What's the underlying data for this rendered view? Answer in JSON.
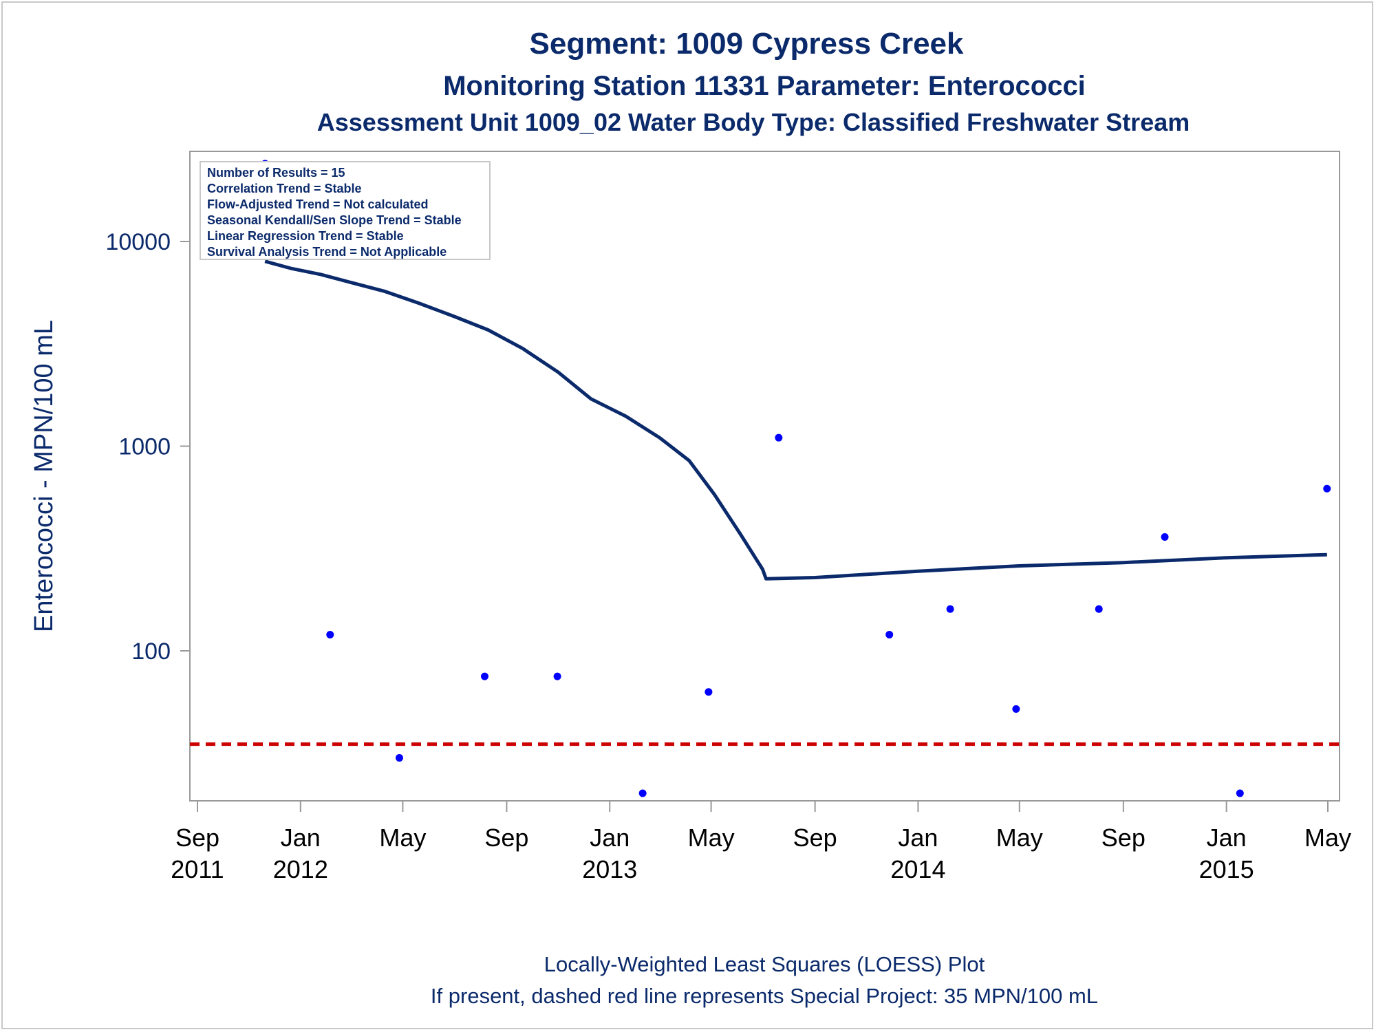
{
  "chart_data": {
    "type": "scatter",
    "title": "Segment: 1009  Cypress Creek",
    "subtitle": "Monitoring Station 11331 Parameter: Enterococci",
    "subtitle2": "Assessment Unit 1009_02   Water Body Type: Classified Freshwater Stream",
    "ylabel": "Enterococci - MPN/100 mL",
    "xlabel": "",
    "y_scale": "log",
    "ylim": [
      17,
      25000
    ],
    "xlim": [
      "2011-09-01",
      "2015-05-01"
    ],
    "yticks": [
      {
        "value": 10000,
        "label": "10000"
      },
      {
        "value": 1000,
        "label": "1000"
      },
      {
        "value": 100,
        "label": "100"
      }
    ],
    "xticks": [
      {
        "date": "2011-09-01",
        "month": "Sep",
        "year": "2011"
      },
      {
        "date": "2012-01-01",
        "month": "Jan",
        "year": "2012"
      },
      {
        "date": "2012-05-01",
        "month": "May",
        "year": ""
      },
      {
        "date": "2012-09-01",
        "month": "Sep",
        "year": ""
      },
      {
        "date": "2013-01-01",
        "month": "Jan",
        "year": "2013"
      },
      {
        "date": "2013-05-01",
        "month": "May",
        "year": ""
      },
      {
        "date": "2013-09-01",
        "month": "Sep",
        "year": ""
      },
      {
        "date": "2014-01-01",
        "month": "Jan",
        "year": "2014"
      },
      {
        "date": "2014-05-01",
        "month": "May",
        "year": ""
      },
      {
        "date": "2014-09-01",
        "month": "Sep",
        "year": ""
      },
      {
        "date": "2015-01-01",
        "month": "Jan",
        "year": "2015"
      },
      {
        "date": "2015-05-01",
        "month": "May",
        "year": ""
      }
    ],
    "points": [
      {
        "date": "2011-11-20",
        "value": 24000
      },
      {
        "date": "2012-02-05",
        "value": 120
      },
      {
        "date": "2012-04-27",
        "value": 30
      },
      {
        "date": "2012-08-06",
        "value": 75
      },
      {
        "date": "2012-10-31",
        "value": 75
      },
      {
        "date": "2013-02-09",
        "value": 20
      },
      {
        "date": "2013-04-28",
        "value": 63
      },
      {
        "date": "2013-07-20",
        "value": 1100
      },
      {
        "date": "2013-11-28",
        "value": 120
      },
      {
        "date": "2014-02-08",
        "value": 160
      },
      {
        "date": "2014-04-27",
        "value": 52
      },
      {
        "date": "2014-08-03",
        "value": 160
      },
      {
        "date": "2014-10-20",
        "value": 360
      },
      {
        "date": "2015-01-17",
        "value": 20
      },
      {
        "date": "2015-04-30",
        "value": 620
      }
    ],
    "loess": [
      {
        "date": "2011-11-20",
        "value": 8000
      },
      {
        "date": "2011-12-20",
        "value": 7400
      },
      {
        "date": "2012-01-25",
        "value": 6900
      },
      {
        "date": "2012-03-01",
        "value": 6300
      },
      {
        "date": "2012-04-10",
        "value": 5700
      },
      {
        "date": "2012-05-20",
        "value": 5000
      },
      {
        "date": "2012-07-01",
        "value": 4300
      },
      {
        "date": "2012-08-10",
        "value": 3700
      },
      {
        "date": "2012-09-20",
        "value": 3000
      },
      {
        "date": "2012-11-01",
        "value": 2300
      },
      {
        "date": "2012-12-10",
        "value": 1700
      },
      {
        "date": "2013-01-20",
        "value": 1400
      },
      {
        "date": "2013-03-01",
        "value": 1100
      },
      {
        "date": "2013-04-05",
        "value": 850
      },
      {
        "date": "2013-05-05",
        "value": 580
      },
      {
        "date": "2013-06-05",
        "value": 370
      },
      {
        "date": "2013-07-01",
        "value": 250
      },
      {
        "date": "2013-07-05",
        "value": 225
      },
      {
        "date": "2013-09-01",
        "value": 228
      },
      {
        "date": "2014-01-01",
        "value": 245
      },
      {
        "date": "2014-05-01",
        "value": 260
      },
      {
        "date": "2014-09-01",
        "value": 270
      },
      {
        "date": "2015-01-01",
        "value": 285
      },
      {
        "date": "2015-04-30",
        "value": 295
      }
    ],
    "reference_line": {
      "value": 35,
      "style": "dashed",
      "color": "#cc0000"
    },
    "point_color": "#0000ff",
    "line_color": "#0b2a6b",
    "grid": false,
    "stats": [
      "Number of Results = 15",
      "Correlation Trend = Stable",
      "Flow-Adjusted Trend = Not calculated",
      "Seasonal Kendall/Sen Slope Trend = Stable",
      "Linear Regression Trend = Stable",
      "Survival Analysis Trend = Not Applicable"
    ],
    "footnotes": [
      "Locally-Weighted Least Squares (LOESS) Plot",
      "If present, dashed red line represents Special Project: 35 MPN/100 mL"
    ]
  }
}
